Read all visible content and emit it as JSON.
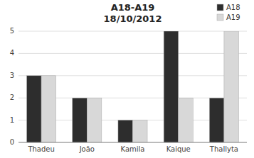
{
  "chart_data": {
    "type": "bar",
    "title": "A18-A19\n18/10/2012",
    "categories": [
      "Thadeu",
      "João",
      "Kamila",
      "Kaique",
      "Thallyta"
    ],
    "series": [
      {
        "name": "A18",
        "color": "#2d2d2d",
        "values": [
          3,
          2,
          1,
          5,
          2
        ]
      },
      {
        "name": "A19",
        "color": "#d8d8d8",
        "values": [
          3,
          2,
          1,
          2,
          5
        ]
      }
    ],
    "ylim": [
      0,
      5
    ],
    "yticks": [
      0,
      1,
      2,
      3,
      4,
      5
    ],
    "grid": true,
    "legend": "upper right"
  }
}
